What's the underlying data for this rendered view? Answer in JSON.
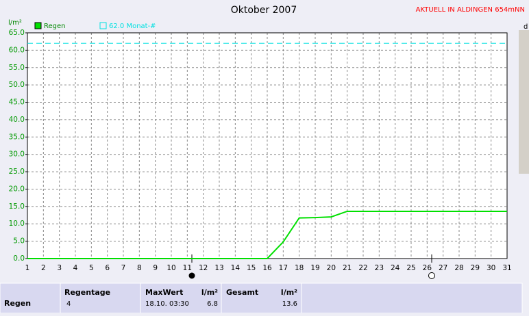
{
  "chart_data": {
    "type": "line",
    "title": "Oktober 2007",
    "annotation": "AKTUELL IN ALDINGEN 654mNN",
    "y_label": "l/m²",
    "x_label": "d",
    "x": [
      1,
      2,
      3,
      4,
      5,
      6,
      7,
      8,
      9,
      10,
      11,
      12,
      13,
      14,
      15,
      16,
      17,
      18,
      19,
      20,
      21,
      22,
      23,
      24,
      25,
      26,
      27,
      28,
      29,
      30,
      31
    ],
    "series": [
      {
        "name": "Regen",
        "color": "#00e000",
        "values": [
          0,
          0,
          0,
          0,
          0,
          0,
          0,
          0,
          0,
          0,
          0,
          0,
          0,
          0,
          0,
          0,
          4.8,
          11.7,
          11.8,
          12.0,
          13.6,
          13.6,
          13.6,
          13.6,
          13.6,
          13.6,
          13.6,
          13.6,
          13.6,
          13.6,
          13.6
        ]
      }
    ],
    "reference_line": {
      "label": "62.0 Monat-#",
      "value": 62.0,
      "color": "#00e0e0"
    },
    "xlim": [
      1,
      31
    ],
    "xticks": [
      1,
      2,
      3,
      4,
      5,
      6,
      7,
      8,
      9,
      10,
      11,
      12,
      13,
      14,
      15,
      16,
      17,
      18,
      19,
      20,
      21,
      22,
      23,
      24,
      25,
      26,
      27,
      28,
      29,
      30,
      31
    ],
    "ylim": [
      0,
      65
    ],
    "yticks": [
      {
        "value": 0,
        "label": "0.0"
      },
      {
        "value": 5,
        "label": "5.0"
      },
      {
        "value": 10,
        "label": "10.0"
      },
      {
        "value": 15,
        "label": "15.0"
      },
      {
        "value": 20,
        "label": "20.0"
      },
      {
        "value": 25,
        "label": "25.0"
      },
      {
        "value": 30,
        "label": "30.0"
      },
      {
        "value": 35,
        "label": "35.0"
      },
      {
        "value": 40,
        "label": "40.0"
      },
      {
        "value": 45,
        "label": "45.0"
      },
      {
        "value": 50,
        "label": "50.0"
      },
      {
        "value": 55,
        "label": "55.0"
      },
      {
        "value": 60,
        "label": "60.0"
      },
      {
        "value": 65,
        "label": "65.0"
      }
    ],
    "grid": true
  },
  "summary": {
    "row_label": "Regen",
    "regentage": {
      "header": "Regentage",
      "value": 4
    },
    "maxwert": {
      "header": "MaxWert",
      "date": "18.10. 03:30",
      "unit": "l/m²",
      "value": 6.8
    },
    "gesamt": {
      "header": "Gesamt",
      "unit": "l/m²",
      "value": 13.6
    }
  }
}
